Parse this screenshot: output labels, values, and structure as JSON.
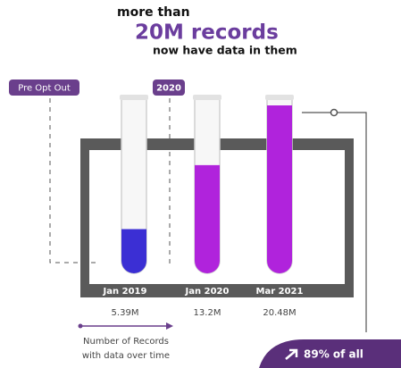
{
  "chart_data": {
    "type": "bar",
    "title": [
      "more than",
      "20M records",
      "now have data in them"
    ],
    "annotations": [
      "Pre Opt Out",
      "2020"
    ],
    "categories": [
      "Jan 2019",
      "Jan 2020",
      "Mar 2021"
    ],
    "values": [
      5.39,
      13.2,
      20.48
    ],
    "value_labels": [
      "5.39M",
      "13.2M",
      "20.48M"
    ],
    "colors": [
      "#3b2fd4",
      "#b023dc",
      "#b023dc"
    ],
    "caption": [
      "Number of Records",
      "with data over time"
    ],
    "callout": "89% of all"
  }
}
